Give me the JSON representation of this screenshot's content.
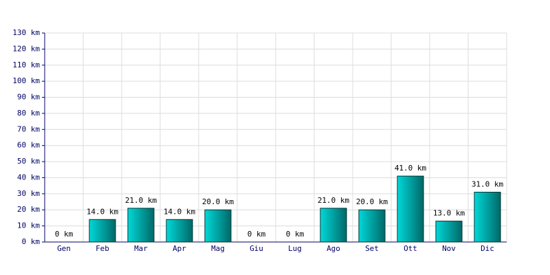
{
  "chart_data": {
    "type": "bar",
    "categories": [
      "Gen",
      "Feb",
      "Mar",
      "Apr",
      "Mag",
      "Giu",
      "Lug",
      "Ago",
      "Set",
      "Ott",
      "Nov",
      "Dic"
    ],
    "values": [
      0,
      14,
      21,
      14,
      20,
      0,
      0,
      21,
      20,
      41,
      13,
      31
    ],
    "value_labels": [
      "0 km",
      "14.0 km",
      "21.0 km",
      "14.0 km",
      "20.0 km",
      "0 km",
      "0 km",
      "21.0 km",
      "20.0 km",
      "41.0 km",
      "13.0 km",
      "31.0 km"
    ],
    "color": "#00d8d8",
    "ylim": [
      0,
      130
    ],
    "yticks": [
      {
        "value": 0,
        "label": "0 km"
      },
      {
        "value": 10,
        "label": "10 km"
      },
      {
        "value": 20,
        "label": "20 km"
      },
      {
        "value": 30,
        "label": "30 km"
      },
      {
        "value": 40,
        "label": "40 km"
      },
      {
        "value": 50,
        "label": "50 km"
      },
      {
        "value": 60,
        "label": "60 km"
      },
      {
        "value": 70,
        "label": "70 km"
      },
      {
        "value": 80,
        "label": "80 km"
      },
      {
        "value": 90,
        "label": "90 km"
      },
      {
        "value": 100,
        "label": "100 km"
      },
      {
        "value": 110,
        "label": "110 km"
      },
      {
        "value": 120,
        "label": "120 km"
      },
      {
        "value": 130,
        "label": "130 km"
      }
    ],
    "grid": true
  }
}
